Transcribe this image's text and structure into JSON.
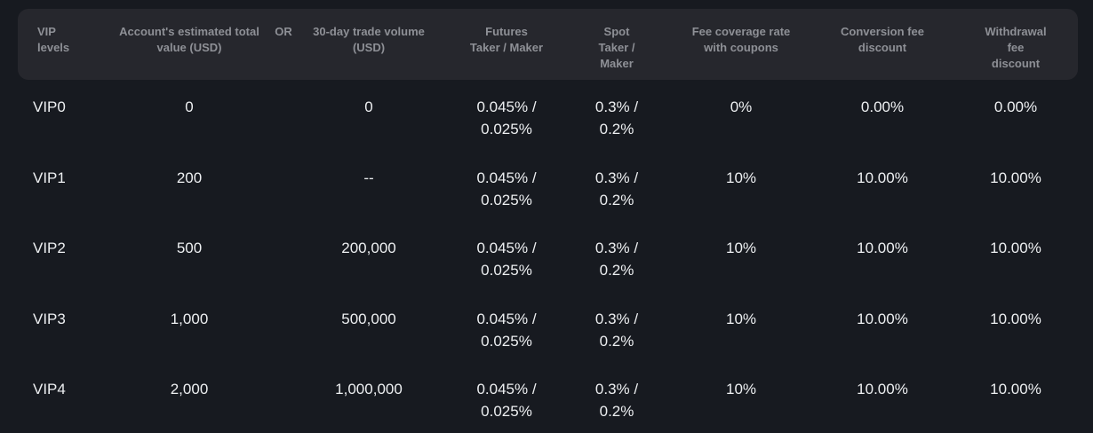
{
  "colors": {
    "page_background": "#171a20",
    "header_background": "#26272d",
    "header_text": "#8e9096",
    "body_text": "#edeff1"
  },
  "table": {
    "columns": [
      {
        "id": "vip",
        "label": "VIP\nlevels"
      },
      {
        "id": "account_value",
        "label": "Account's estimated total\nvalue (USD)"
      },
      {
        "id": "or",
        "label": "OR"
      },
      {
        "id": "trade_volume",
        "label": "30-day trade volume\n(USD)"
      },
      {
        "id": "futures",
        "label": "Futures\nTaker / Maker"
      },
      {
        "id": "spot",
        "label": "Spot\nTaker /\nMaker"
      },
      {
        "id": "coverage",
        "label": "Fee coverage rate\nwith coupons"
      },
      {
        "id": "conversion",
        "label": "Conversion fee\ndiscount"
      },
      {
        "id": "withdrawal",
        "label": "Withdrawal fee\ndiscount"
      }
    ],
    "rows": [
      {
        "vip": "VIP0",
        "account_value": "0",
        "trade_volume": "0",
        "futures": "0.045% /\n0.025%",
        "spot": "0.3% /\n0.2%",
        "coverage": "0%",
        "conversion": "0.00%",
        "withdrawal": "0.00%"
      },
      {
        "vip": "VIP1",
        "account_value": "200",
        "trade_volume": "--",
        "futures": "0.045% /\n0.025%",
        "spot": "0.3% /\n0.2%",
        "coverage": "10%",
        "conversion": "10.00%",
        "withdrawal": "10.00%"
      },
      {
        "vip": "VIP2",
        "account_value": "500",
        "trade_volume": "200,000",
        "futures": "0.045% /\n0.025%",
        "spot": "0.3% /\n0.2%",
        "coverage": "10%",
        "conversion": "10.00%",
        "withdrawal": "10.00%"
      },
      {
        "vip": "VIP3",
        "account_value": "1,000",
        "trade_volume": "500,000",
        "futures": "0.045% /\n0.025%",
        "spot": "0.3% /\n0.2%",
        "coverage": "10%",
        "conversion": "10.00%",
        "withdrawal": "10.00%"
      },
      {
        "vip": "VIP4",
        "account_value": "2,000",
        "trade_volume": "1,000,000",
        "futures": "0.045% /\n0.025%",
        "spot": "0.3% /\n0.2%",
        "coverage": "10%",
        "conversion": "10.00%",
        "withdrawal": "10.00%"
      }
    ]
  }
}
